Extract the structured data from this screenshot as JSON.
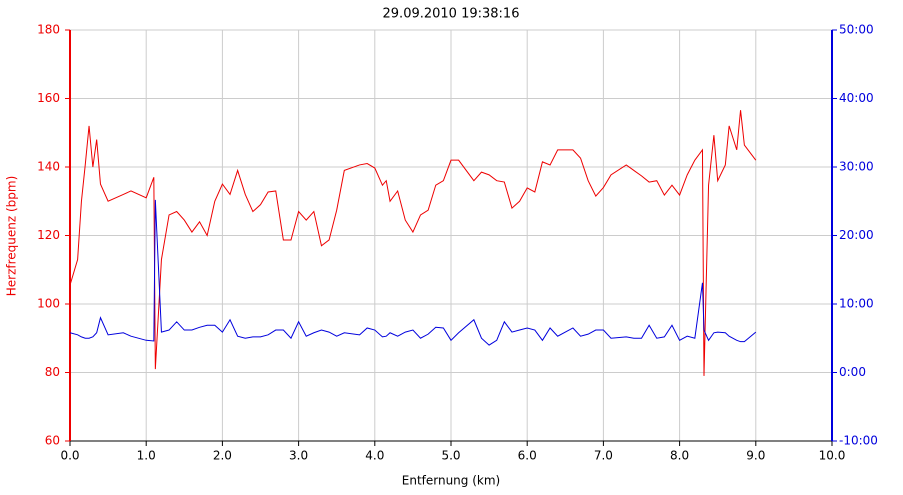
{
  "chart_data": {
    "type": "line",
    "title": "29.09.2010 19:38:16",
    "xlabel": "Entfernung (km)",
    "ylabel": "Herzfrequenz (bpm)",
    "x": [
      0,
      0.1,
      0.15,
      0.2,
      0.25,
      0.3,
      0.35,
      0.4,
      0.5,
      0.7,
      0.8,
      1.0,
      1.1,
      1.12,
      1.2,
      1.3,
      1.4,
      1.5,
      1.6,
      1.7,
      1.8,
      1.9,
      2.0,
      2.1,
      2.2,
      2.3,
      2.4,
      2.5,
      2.6,
      2.7,
      2.8,
      2.9,
      3.0,
      3.1,
      3.2,
      3.3,
      3.4,
      3.5,
      3.6,
      3.8,
      3.9,
      4.0,
      4.1,
      4.15,
      4.2,
      4.3,
      4.4,
      4.5,
      4.6,
      4.7,
      4.8,
      4.9,
      5.0,
      5.1,
      5.3,
      5.4,
      5.5,
      5.6,
      5.7,
      5.8,
      5.9,
      6.0,
      6.1,
      6.2,
      6.3,
      6.4,
      6.6,
      6.7,
      6.8,
      6.9,
      7.0,
      7.1,
      7.3,
      7.4,
      7.5,
      7.6,
      7.7,
      7.8,
      7.9,
      8.0,
      8.1,
      8.2,
      8.3,
      8.32,
      8.38,
      8.45,
      8.5,
      8.6,
      8.65,
      8.75,
      8.8,
      8.85,
      9.0
    ],
    "series": [
      {
        "color": "#ee0000",
        "axis": "y",
        "values": [
          105.5,
          113,
          130,
          140.6,
          152,
          140,
          148,
          135,
          130,
          132,
          133,
          131,
          137,
          81,
          113,
          126,
          127,
          124.5,
          121,
          124,
          120,
          130,
          135,
          132,
          139,
          132,
          127,
          129,
          132.7,
          133,
          118.7,
          118.7,
          127,
          124.5,
          127,
          117,
          118.7,
          127.4,
          139,
          140.6,
          141,
          139.7,
          134.7,
          136,
          130,
          133,
          124.5,
          121,
          126,
          127.4,
          134.7,
          136,
          142,
          142,
          136,
          138.5,
          137.7,
          136,
          135.6,
          128,
          130,
          133.9,
          132.7,
          141.5,
          140.6,
          145,
          145,
          142.6,
          136,
          131.5,
          134,
          137.7,
          140.6,
          139,
          137.4,
          135.6,
          136,
          131.8,
          134.7,
          131.8,
          137.7,
          142,
          145,
          79,
          134.7,
          149.3,
          136,
          140.6,
          152,
          145,
          156.6,
          146.4,
          142
        ]
      },
      {
        "color": "#0000dd",
        "axis": "y2",
        "values": [
          5.8,
          5.5,
          5.2,
          5.0,
          5.0,
          5.2,
          5.8,
          8.0,
          5.5,
          5.8,
          5.3,
          4.7,
          4.6,
          25.2,
          5.9,
          6.2,
          7.4,
          6.2,
          6.2,
          6.6,
          6.9,
          6.9,
          5.9,
          7.7,
          5.3,
          5.0,
          5.2,
          5.2,
          5.5,
          6.2,
          6.2,
          5.0,
          7.4,
          5.3,
          5.8,
          6.2,
          5.9,
          5.3,
          5.8,
          5.5,
          6.5,
          6.2,
          5.2,
          5.3,
          5.8,
          5.3,
          5.9,
          6.2,
          5.0,
          5.6,
          6.6,
          6.5,
          4.7,
          5.8,
          7.7,
          5.0,
          4.0,
          4.7,
          7.4,
          5.9,
          6.2,
          6.5,
          6.2,
          4.7,
          6.5,
          5.3,
          6.5,
          5.3,
          5.6,
          6.2,
          6.2,
          5.0,
          5.2,
          5.0,
          5.0,
          6.9,
          5.0,
          5.2,
          6.9,
          4.7,
          5.3,
          5.0,
          13.1,
          6.2,
          4.7,
          5.8,
          5.9,
          5.8,
          5.3,
          4.7,
          4.5,
          4.5,
          5.9
        ]
      }
    ],
    "xlim": [
      0,
      10
    ],
    "xticks": [
      {
        "value": 0,
        "label": "0.0"
      },
      {
        "value": 1,
        "label": "1.0"
      },
      {
        "value": 2,
        "label": "2.0"
      },
      {
        "value": 3,
        "label": "3.0"
      },
      {
        "value": 4,
        "label": "4.0"
      },
      {
        "value": 5,
        "label": "5.0"
      },
      {
        "value": 6,
        "label": "6.0"
      },
      {
        "value": 7,
        "label": "7.0"
      },
      {
        "value": 8,
        "label": "8.0"
      },
      {
        "value": 9,
        "label": "9.0"
      },
      {
        "value": 10,
        "label": "10.0"
      }
    ],
    "ylim": [
      60,
      180
    ],
    "yticks": [
      60,
      80,
      100,
      120,
      140,
      160,
      180
    ],
    "y2lim": [
      -10,
      50
    ],
    "y2ticks": [
      {
        "value": -10,
        "label": "-10:00"
      },
      {
        "value": 0,
        "label": "0:00"
      },
      {
        "value": 10,
        "label": "10:00"
      },
      {
        "value": 20,
        "label": "20:00"
      },
      {
        "value": 30,
        "label": "30:00"
      },
      {
        "value": 40,
        "label": "40:00"
      },
      {
        "value": 50,
        "label": "50:00"
      }
    ],
    "grid": true
  }
}
